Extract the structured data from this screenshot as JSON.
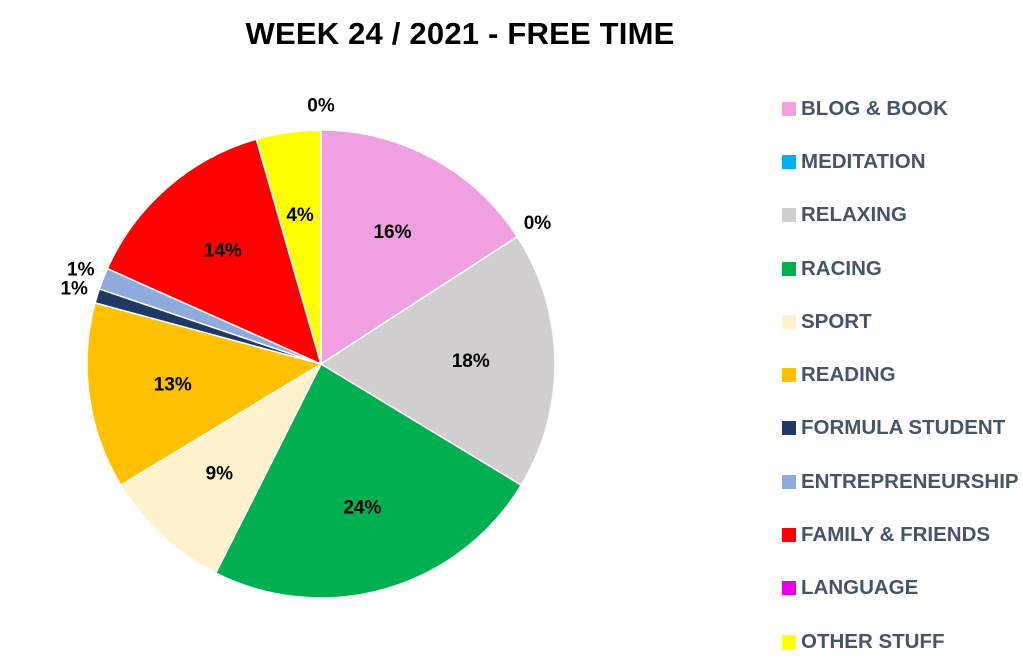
{
  "chart_data": {
    "type": "pie",
    "title": "WEEK 24 / 2021 - FREE TIME",
    "legend_position": "right",
    "slices": [
      {
        "label": "BLOG & BOOK",
        "value": 16,
        "display": "16%",
        "color": "#f0a0e0"
      },
      {
        "label": "MEDITATION",
        "value": 0,
        "display": "0%",
        "color": "#00b0f0"
      },
      {
        "label": "RELAXING",
        "value": 18,
        "display": "18%",
        "color": "#d0cece"
      },
      {
        "label": "RACING",
        "value": 24,
        "display": "24%",
        "color": "#00b050"
      },
      {
        "label": "SPORT",
        "value": 9,
        "display": "9%",
        "color": "#fff2cc"
      },
      {
        "label": "READING",
        "value": 13,
        "display": "13%",
        "color": "#ffc000"
      },
      {
        "label": "FORMULA STUDENT",
        "value": 1,
        "display": "1%",
        "color": "#203864"
      },
      {
        "label": "ENTREPRENEURSHIP",
        "value": 1.5,
        "display": "1%",
        "color": "#8faadc"
      },
      {
        "label": "FAMILY & FRIENDS",
        "value": 14,
        "display": "14%",
        "color": "#ff0000"
      },
      {
        "label": "LANGUAGE",
        "value": 0,
        "display": "",
        "color": "#e600e6"
      },
      {
        "label": "OTHER STUFF",
        "value": 4.5,
        "display": "4%",
        "color": "#ffff00"
      },
      {
        "label": "",
        "value": 0,
        "display": "0%",
        "color": "#ffff00"
      }
    ]
  }
}
